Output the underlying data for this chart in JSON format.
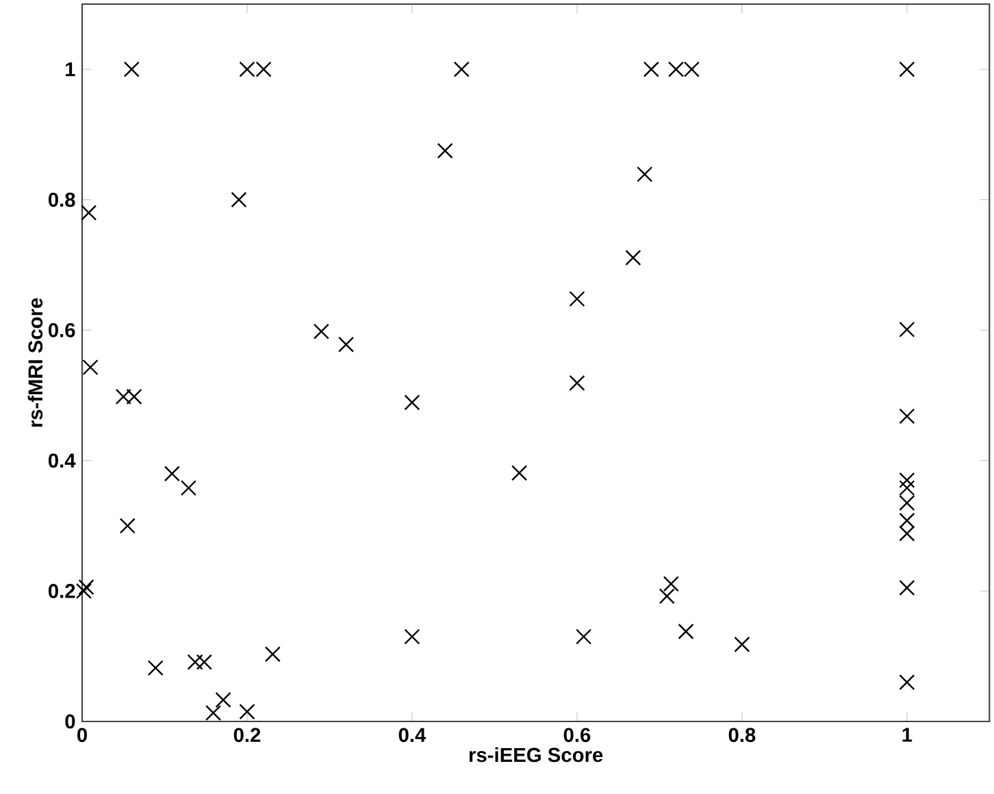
{
  "chart_data": {
    "type": "scatter",
    "xlabel": "rs-iEEG Score",
    "ylabel": "rs-fMRI Score",
    "marker": "cross",
    "xlim": [
      0,
      1.1
    ],
    "ylim": [
      0,
      1.1
    ],
    "xticks": [
      0,
      0.2,
      0.4,
      0.6,
      0.8,
      1
    ],
    "yticks": [
      0,
      0.2,
      0.4,
      0.6,
      0.8,
      1
    ],
    "series": [
      {
        "color": "#000000",
        "x": [
          0.06,
          0.2,
          0.22,
          0.008,
          0.19,
          0.01,
          0.05,
          0.063,
          0.29,
          0.002,
          0.005,
          0.109,
          0.129,
          0.055,
          0.089,
          0.137,
          0.148,
          0.231,
          0.171,
          0.159,
          0.2,
          0.46,
          0.44,
          0.682,
          0.668,
          0.6,
          0.6,
          0.32,
          0.4,
          0.53,
          0.714,
          0.709,
          0.4,
          0.608,
          0.69,
          0.72,
          0.739,
          1,
          1,
          1,
          1,
          1,
          1,
          1,
          1,
          1,
          1,
          0.732,
          0.8
        ],
        "values": [
          1,
          1,
          1,
          0.78,
          0.8,
          0.543,
          0.498,
          0.498,
          0.598,
          0.2,
          0.206,
          0.38,
          0.358,
          0.3,
          0.082,
          0.091,
          0.091,
          0.103,
          0.033,
          0.013,
          0.015,
          1,
          0.875,
          0.839,
          0.711,
          0.648,
          0.519,
          0.578,
          0.489,
          0.381,
          0.211,
          0.192,
          0.13,
          0.13,
          1,
          1,
          1,
          1,
          0.601,
          0.468,
          0.37,
          0.358,
          0.335,
          0.308,
          0.288,
          0.205,
          0.06,
          0.138,
          0.118
        ]
      }
    ]
  }
}
